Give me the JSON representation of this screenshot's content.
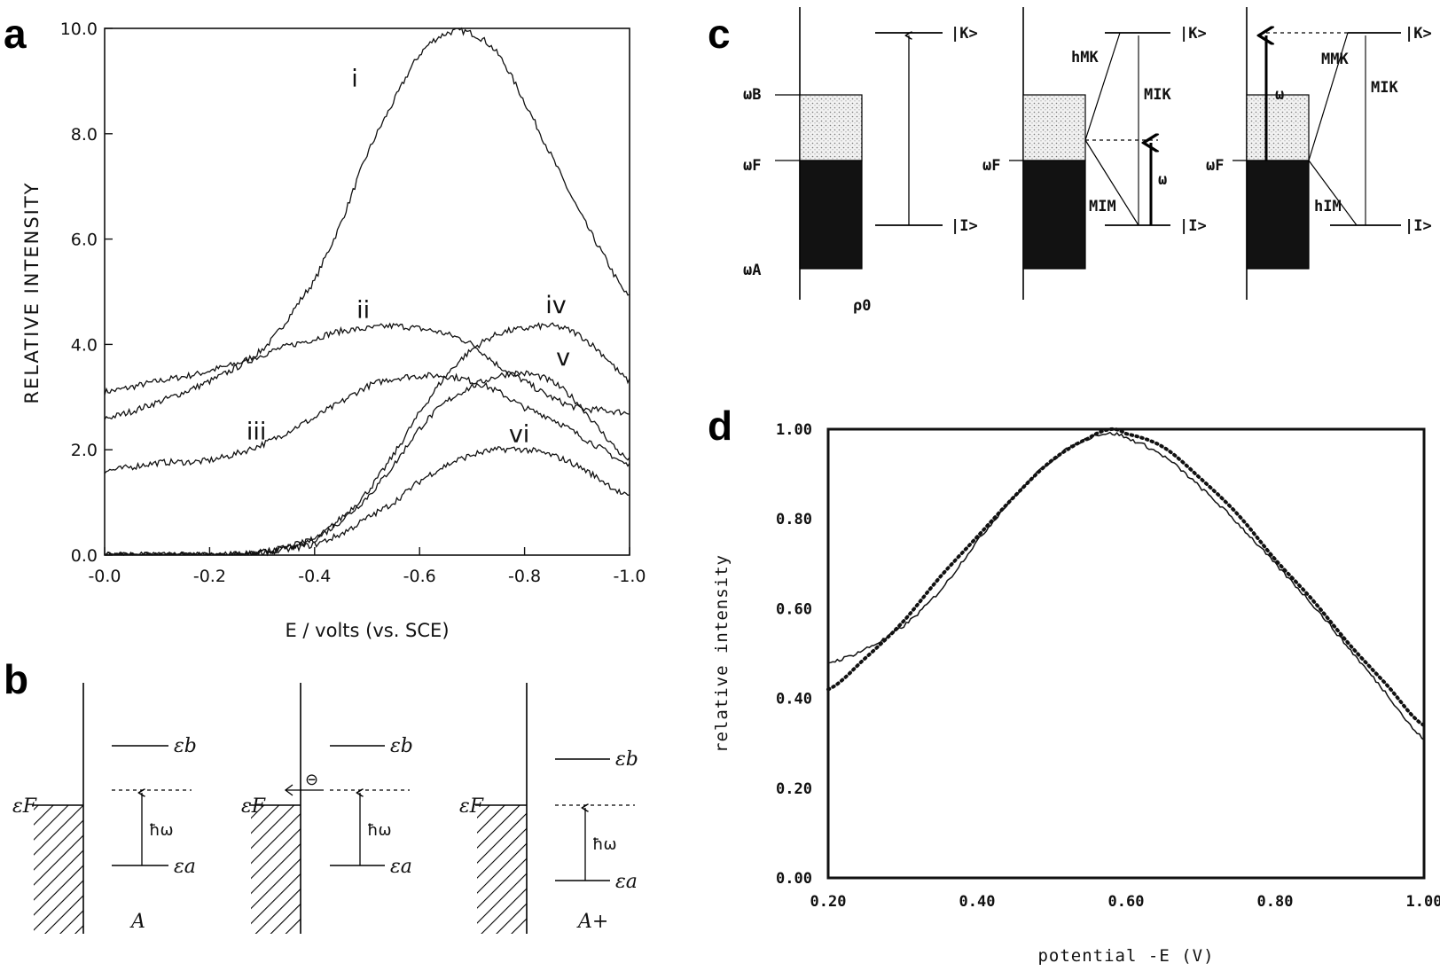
{
  "panel_labels": [
    "a",
    "b",
    "c",
    "d"
  ],
  "chart_data": [
    {
      "panel": "a",
      "type": "line",
      "ylabel": "RELATIVE INTENSITY",
      "xlabel": "E / volts (vs. SCE)",
      "xlim": [
        0.0,
        -1.0
      ],
      "ylim": [
        0.0,
        10.0
      ],
      "x_ticks": [
        "-0.0",
        "-0.2",
        "-0.4",
        "-0.6",
        "-0.8",
        "-1.0"
      ],
      "y_ticks": [
        "0.0",
        "2.0",
        "4.0",
        "6.0",
        "8.0",
        "10.0"
      ],
      "x": [
        0.0,
        -0.1,
        -0.2,
        -0.3,
        -0.4,
        -0.45,
        -0.5,
        -0.55,
        -0.6,
        -0.65,
        -0.7,
        -0.75,
        -0.8,
        -0.85,
        -0.9,
        -0.95,
        -1.0
      ],
      "series": [
        {
          "name": "i",
          "label_at": [
            -0.47,
            8.9
          ],
          "values": [
            3.1,
            3.3,
            3.5,
            3.9,
            5.2,
            6.3,
            7.6,
            8.6,
            9.5,
            9.9,
            9.9,
            9.5,
            8.6,
            7.6,
            6.6,
            5.7,
            4.9
          ]
        },
        {
          "name": "ii",
          "label_at": [
            -0.48,
            4.5
          ],
          "values": [
            2.6,
            2.9,
            3.3,
            3.8,
            4.1,
            4.25,
            4.3,
            4.35,
            4.3,
            4.2,
            4.0,
            3.6,
            3.3,
            3.0,
            2.8,
            2.75,
            2.7
          ]
        },
        {
          "name": "iii",
          "label_at": [
            -0.27,
            2.2
          ],
          "values": [
            1.6,
            1.75,
            1.8,
            2.1,
            2.6,
            2.9,
            3.2,
            3.35,
            3.4,
            3.4,
            3.3,
            3.1,
            2.8,
            2.6,
            2.3,
            2.0,
            1.7
          ]
        },
        {
          "name": "iv",
          "label_at": [
            -0.84,
            4.6
          ],
          "values": [
            0.0,
            0.0,
            0.0,
            0.05,
            0.3,
            0.7,
            1.2,
            1.9,
            2.7,
            3.4,
            3.9,
            4.2,
            4.3,
            4.35,
            4.2,
            3.8,
            3.3
          ]
        },
        {
          "name": "v",
          "label_at": [
            -0.86,
            3.6
          ],
          "values": [
            0.0,
            0.0,
            0.0,
            0.05,
            0.3,
            0.65,
            1.1,
            1.7,
            2.4,
            2.9,
            3.2,
            3.4,
            3.45,
            3.3,
            2.9,
            2.3,
            1.8
          ]
        },
        {
          "name": "vi",
          "label_at": [
            -0.77,
            2.15
          ],
          "values": [
            0.0,
            0.0,
            0.0,
            0.05,
            0.2,
            0.4,
            0.7,
            1.0,
            1.4,
            1.7,
            1.9,
            2.0,
            2.0,
            1.9,
            1.7,
            1.4,
            1.1
          ]
        }
      ]
    },
    {
      "panel": "d",
      "type": "line",
      "ylabel": "relative intensity",
      "xlabel": "potential -E (V)",
      "xlim": [
        0.2,
        1.0
      ],
      "ylim": [
        0.0,
        1.0
      ],
      "x_ticks": [
        "0.20",
        "0.40",
        "0.60",
        "0.80",
        "1.00"
      ],
      "y_ticks": [
        "0.00",
        "0.20",
        "0.40",
        "0.60",
        "0.80",
        "1.00"
      ],
      "x": [
        0.2,
        0.25,
        0.3,
        0.35,
        0.4,
        0.45,
        0.5,
        0.55,
        0.58,
        0.6,
        0.65,
        0.7,
        0.75,
        0.8,
        0.85,
        0.9,
        0.95,
        1.0
      ],
      "series": [
        {
          "style": "solid",
          "values": [
            0.48,
            0.51,
            0.56,
            0.64,
            0.75,
            0.85,
            0.93,
            0.98,
            0.99,
            0.98,
            0.94,
            0.87,
            0.79,
            0.7,
            0.61,
            0.51,
            0.41,
            0.31
          ]
        },
        {
          "style": "dotted",
          "values": [
            0.42,
            0.49,
            0.57,
            0.67,
            0.76,
            0.85,
            0.93,
            0.98,
            1.0,
            0.99,
            0.96,
            0.89,
            0.81,
            0.71,
            0.62,
            0.52,
            0.43,
            0.34
          ]
        }
      ]
    }
  ],
  "diagram_b": {
    "states": [
      "A",
      "A+"
    ],
    "fermi_label": "εF",
    "level_b": "εb",
    "level_a": "εa",
    "photon": "ħω",
    "electron": "⊖"
  },
  "diagram_c": {
    "state_K": "|K>",
    "state_I": "|I>",
    "omega_B": "ωB",
    "omega_F": "ωF",
    "omega_A": "ωA",
    "rho": "ρ0",
    "omega": "ω",
    "hMK": "hMK",
    "MIK": "MIK",
    "MIM": "MIM",
    "MMK": "MMK",
    "hIM": "hIM"
  }
}
